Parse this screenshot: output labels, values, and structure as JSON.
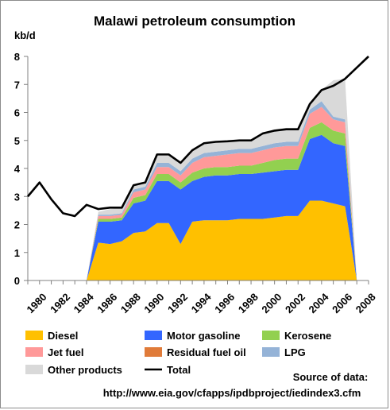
{
  "chart_data": {
    "type": "area",
    "title": "Malawi petroleum consumption",
    "ylabel": "kb/d",
    "xlabel": "",
    "ylim": [
      0,
      8
    ],
    "yticks": [
      "0",
      "1",
      "2",
      "3",
      "4",
      "5",
      "6",
      "7",
      "8"
    ],
    "xticks": [
      "1980",
      "1982",
      "1984",
      "1986",
      "1988",
      "1990",
      "1992",
      "1994",
      "1996",
      "1998",
      "2000",
      "2002",
      "2004",
      "2006",
      "2008"
    ],
    "x": [
      1980,
      1981,
      1982,
      1983,
      1984,
      1985,
      1986,
      1987,
      1988,
      1989,
      1990,
      1991,
      1992,
      1993,
      1994,
      1995,
      1996,
      1997,
      1998,
      1999,
      2000,
      2001,
      2002,
      2003,
      2004,
      2005,
      2006,
      2007,
      2008,
      2009
    ],
    "grid": false,
    "legend_position": "bottom",
    "series": [
      {
        "name": "Diesel",
        "color": "#ffc000",
        "values": [
          0,
          0,
          0,
          0,
          0,
          0,
          1.35,
          1.3,
          1.4,
          1.7,
          1.75,
          2.05,
          2.05,
          1.3,
          2.1,
          2.15,
          2.15,
          2.15,
          2.2,
          2.2,
          2.2,
          2.25,
          2.3,
          2.3,
          2.85,
          2.85,
          2.75,
          2.65,
          0,
          0
        ]
      },
      {
        "name": "Motor gasoline",
        "color": "#3366ff",
        "values": [
          0,
          0,
          0,
          0,
          0,
          0,
          0.75,
          0.8,
          0.75,
          1.05,
          1.1,
          1.5,
          1.5,
          1.95,
          1.45,
          1.55,
          1.6,
          1.6,
          1.6,
          1.6,
          1.65,
          1.65,
          1.65,
          1.65,
          2.2,
          2.35,
          2.15,
          2.15,
          0,
          0
        ]
      },
      {
        "name": "Kerosene",
        "color": "#92d050",
        "values": [
          0,
          0,
          0,
          0,
          0,
          0,
          0.1,
          0.1,
          0.1,
          0.2,
          0.2,
          0.25,
          0.25,
          0.25,
          0.3,
          0.3,
          0.3,
          0.3,
          0.3,
          0.3,
          0.35,
          0.4,
          0.4,
          0.4,
          0.4,
          0.45,
          0.45,
          0.45,
          0,
          0
        ]
      },
      {
        "name": "Jet fuel",
        "color": "#ff9999",
        "values": [
          0,
          0,
          0,
          0,
          0,
          0,
          0.1,
          0.1,
          0.1,
          0.2,
          0.2,
          0.25,
          0.25,
          0.25,
          0.35,
          0.4,
          0.4,
          0.45,
          0.45,
          0.45,
          0.45,
          0.45,
          0.45,
          0.45,
          0.5,
          0.55,
          0.4,
          0.4,
          0,
          0
        ]
      },
      {
        "name": "Residual fuel oil",
        "color": "#e07b39",
        "values": [
          0,
          0,
          0,
          0,
          0,
          0,
          0,
          0,
          0,
          0,
          0,
          0,
          0,
          0,
          0,
          0,
          0,
          0,
          0,
          0,
          0,
          0,
          0,
          0,
          0,
          0,
          0,
          0,
          0,
          0
        ]
      },
      {
        "name": "LPG",
        "color": "#95b3d7",
        "values": [
          0,
          0,
          0,
          0,
          0,
          0,
          0.05,
          0.05,
          0.05,
          0.1,
          0.1,
          0.15,
          0.15,
          0.15,
          0.15,
          0.15,
          0.15,
          0.15,
          0.15,
          0.15,
          0.15,
          0.15,
          0.15,
          0.15,
          0.15,
          0.2,
          0.1,
          0.1,
          0,
          0
        ]
      },
      {
        "name": "Other products",
        "color": "#d9d9d9",
        "values": [
          0,
          0,
          0,
          0,
          0,
          0,
          0.1,
          0.2,
          0.2,
          0.15,
          0.15,
          0.3,
          0.3,
          0.3,
          0.3,
          0.35,
          0.35,
          0.35,
          0.35,
          0.35,
          0.45,
          0.5,
          0.5,
          0.5,
          0.2,
          0.4,
          1.3,
          1.45,
          0,
          0
        ]
      }
    ],
    "total": {
      "name": "Total",
      "color": "#000000",
      "values": [
        3.0,
        3.5,
        2.9,
        2.4,
        2.3,
        2.7,
        2.55,
        2.6,
        2.6,
        3.4,
        3.5,
        4.5,
        4.5,
        4.2,
        4.65,
        4.9,
        4.95,
        4.97,
        5.0,
        5.0,
        5.25,
        5.35,
        5.4,
        5.4,
        6.3,
        6.8,
        6.95,
        7.2,
        7.6,
        8.0
      ]
    },
    "source_label": "Source of data:",
    "source_url": "http://www.eia.gov/cfapps/ipdbproject/iedindex3.cfm"
  }
}
